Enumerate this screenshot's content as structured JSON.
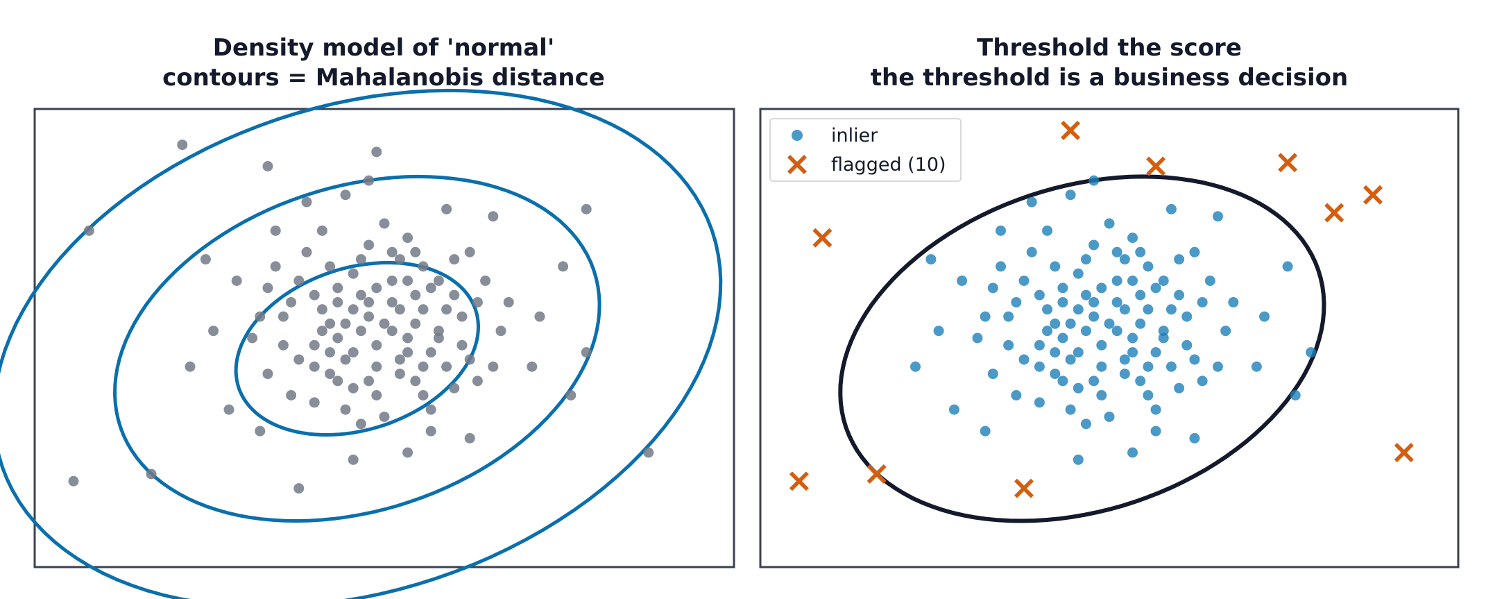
{
  "colors": {
    "axes": "#3b4150",
    "title": "#141a2b",
    "normal_points": "#737a87",
    "contours": "#0a6fad",
    "inlier": "#1e7fb8",
    "flagged": "#d45e0f",
    "threshold": "#141a2b"
  },
  "chart_data": [
    {
      "type": "scatter",
      "title": "Density model of 'normal'",
      "subtitle": "contours = Mahalanobis distance",
      "xlabel": "",
      "ylabel": "",
      "xlim": [
        -4.5,
        4.5
      ],
      "ylim": [
        -3.4,
        3.0
      ],
      "grid": false,
      "center": [
        -0.35,
        -0.35
      ],
      "contour_levels": [
        1,
        2,
        3
      ],
      "contour_semi_axes_at_1": [
        1.62,
        1.12
      ],
      "contour_rotation_deg": 22,
      "series": [
        {
          "points": [
            [
              -0.6,
              -0.2
            ],
            [
              -0.2,
              0.1
            ],
            [
              0.3,
              -0.4
            ],
            [
              -0.9,
              -0.6
            ],
            [
              0.1,
              0.6
            ],
            [
              -0.4,
              -0.9
            ],
            [
              0.8,
              0.2
            ],
            [
              -1.2,
              0.3
            ],
            [
              0.5,
              -1.0
            ],
            [
              -0.1,
              -0.3
            ],
            [
              0.2,
              0.9
            ],
            [
              -0.7,
              0.8
            ],
            [
              1.1,
              -0.5
            ],
            [
              -1.5,
              -0.7
            ],
            [
              0.0,
              -1.3
            ],
            [
              0.6,
              0.5
            ],
            [
              -0.3,
              0.4
            ],
            [
              -0.8,
              -0.1
            ],
            [
              0.4,
              0.0
            ],
            [
              -0.5,
              -0.5
            ],
            [
              1.3,
              0.6
            ],
            [
              -1.0,
              1.0
            ],
            [
              0.9,
              -0.9
            ],
            [
              -1.6,
              0.1
            ],
            [
              0.2,
              -0.7
            ],
            [
              -0.2,
              1.1
            ],
            [
              0.7,
              -0.2
            ],
            [
              -0.9,
              -1.1
            ],
            [
              1.5,
              -0.1
            ],
            [
              -0.4,
              0.7
            ],
            [
              0.1,
              0.3
            ],
            [
              -0.7,
              -0.4
            ],
            [
              0.5,
              0.8
            ],
            [
              -1.3,
              -0.3
            ],
            [
              1.0,
              0.1
            ],
            [
              -0.1,
              -0.6
            ],
            [
              0.3,
              1.2
            ],
            [
              -0.6,
              0.5
            ],
            [
              0.8,
              -0.6
            ],
            [
              -1.1,
              0.6
            ],
            [
              0.0,
              0.0
            ],
            [
              -0.3,
              -0.1
            ],
            [
              0.4,
              0.4
            ],
            [
              -0.8,
              0.2
            ],
            [
              0.6,
              -0.4
            ],
            [
              -0.5,
              -1.2
            ],
            [
              1.2,
              -0.8
            ],
            [
              -1.4,
              0.8
            ],
            [
              0.9,
              0.9
            ],
            [
              -0.2,
              -0.8
            ],
            [
              0.1,
              -0.1
            ],
            [
              -0.4,
              0.2
            ],
            [
              0.3,
              -0.2
            ],
            [
              -0.7,
              0.0
            ],
            [
              0.5,
              0.2
            ],
            [
              -0.1,
              0.5
            ],
            [
              0.2,
              -0.5
            ],
            [
              -0.9,
              0.4
            ],
            [
              0.7,
              0.6
            ],
            [
              -0.6,
              -0.8
            ],
            [
              1.6,
              0.3
            ],
            [
              -1.7,
              -0.2
            ],
            [
              0.4,
              1.0
            ],
            [
              -0.3,
              -1.4
            ],
            [
              1.1,
              1.0
            ],
            [
              -1.2,
              -1.0
            ],
            [
              0.0,
              1.4
            ],
            [
              -0.8,
              1.3
            ],
            [
              1.4,
              -0.6
            ],
            [
              -1.5,
              0.5
            ],
            [
              0.6,
              -1.2
            ],
            [
              -0.2,
              0.3
            ],
            [
              0.2,
              0.2
            ],
            [
              -0.5,
              0.0
            ],
            [
              0.3,
              0.6
            ],
            [
              -0.4,
              -0.4
            ],
            [
              0.7,
              -0.1
            ],
            [
              -0.9,
              -0.3
            ],
            [
              1.0,
              -0.3
            ],
            [
              -0.6,
              0.3
            ],
            [
              0.9,
              0.4
            ],
            [
              -1.1,
              -0.5
            ],
            [
              0.4,
              -0.8
            ],
            [
              -0.3,
              0.9
            ],
            [
              0.5,
              -0.6
            ],
            [
              -0.7,
              -0.7
            ],
            [
              1.2,
              0.3
            ],
            [
              -1.3,
              0.1
            ],
            [
              0.1,
              1.0
            ],
            [
              -0.1,
              -1.0
            ],
            [
              2.3,
              0.8
            ],
            [
              -2.2,
              -0.1
            ],
            [
              0.8,
              1.6
            ],
            [
              -1.6,
              -1.5
            ],
            [
              1.9,
              -0.6
            ],
            [
              -0.5,
              1.8
            ],
            [
              2.6,
              -0.4
            ],
            [
              -2.3,
              0.9
            ],
            [
              0.3,
              -1.8
            ],
            [
              -1.0,
              1.7
            ],
            [
              1.4,
              1.5
            ],
            [
              -2.0,
              -1.2
            ],
            [
              2.0,
              0.1
            ],
            [
              -1.9,
              0.6
            ],
            [
              0.6,
              -1.5
            ],
            [
              -0.2,
              2.0
            ],
            [
              2.4,
              -1.0
            ],
            [
              -2.5,
              -0.6
            ],
            [
              1.1,
              -1.6
            ],
            [
              -1.4,
              1.3
            ],
            [
              -2.6,
              2.5
            ],
            [
              -1.5,
              2.2
            ],
            [
              -0.1,
              2.4
            ],
            [
              2.6,
              1.6
            ],
            [
              -3.8,
              1.3
            ],
            [
              -4.0,
              -2.2
            ],
            [
              -3.0,
              -2.1
            ],
            [
              -1.1,
              -2.3
            ],
            [
              3.4,
              -1.8
            ],
            [
              -0.4,
              -1.9
            ]
          ]
        }
      ]
    },
    {
      "type": "scatter",
      "title": "Threshold the score",
      "subtitle": "the threshold is a business decision",
      "xlabel": "",
      "ylabel": "",
      "xlim": [
        -4.5,
        4.5
      ],
      "ylim": [
        -3.4,
        3.0
      ],
      "grid": false,
      "legend": "top-left",
      "threshold_level": 2,
      "series": [
        {
          "name": "inlier",
          "points": [
            [
              -0.6,
              -0.2
            ],
            [
              -0.2,
              0.1
            ],
            [
              0.3,
              -0.4
            ],
            [
              -0.9,
              -0.6
            ],
            [
              0.1,
              0.6
            ],
            [
              -0.4,
              -0.9
            ],
            [
              0.8,
              0.2
            ],
            [
              -1.2,
              0.3
            ],
            [
              0.5,
              -1.0
            ],
            [
              -0.1,
              -0.3
            ],
            [
              0.2,
              0.9
            ],
            [
              -0.7,
              0.8
            ],
            [
              1.1,
              -0.5
            ],
            [
              -1.5,
              -0.7
            ],
            [
              0.0,
              -1.3
            ],
            [
              0.6,
              0.5
            ],
            [
              -0.3,
              0.4
            ],
            [
              -0.8,
              -0.1
            ],
            [
              0.4,
              0.0
            ],
            [
              -0.5,
              -0.5
            ],
            [
              1.3,
              0.6
            ],
            [
              -1.0,
              1.0
            ],
            [
              0.9,
              -0.9
            ],
            [
              -1.6,
              0.1
            ],
            [
              0.2,
              -0.7
            ],
            [
              -0.2,
              1.1
            ],
            [
              0.7,
              -0.2
            ],
            [
              -0.9,
              -1.1
            ],
            [
              1.5,
              -0.1
            ],
            [
              -0.4,
              0.7
            ],
            [
              0.1,
              0.3
            ],
            [
              -0.7,
              -0.4
            ],
            [
              0.5,
              0.8
            ],
            [
              -1.3,
              -0.3
            ],
            [
              1.0,
              0.1
            ],
            [
              -0.1,
              -0.6
            ],
            [
              0.3,
              1.2
            ],
            [
              -0.6,
              0.5
            ],
            [
              0.8,
              -0.6
            ],
            [
              -1.1,
              0.6
            ],
            [
              0.0,
              0.0
            ],
            [
              -0.3,
              -0.1
            ],
            [
              0.4,
              0.4
            ],
            [
              -0.8,
              0.2
            ],
            [
              0.6,
              -0.4
            ],
            [
              -0.5,
              -1.2
            ],
            [
              1.2,
              -0.8
            ],
            [
              -1.4,
              0.8
            ],
            [
              0.9,
              0.9
            ],
            [
              -0.2,
              -0.8
            ],
            [
              0.1,
              -0.1
            ],
            [
              -0.4,
              0.2
            ],
            [
              0.3,
              -0.2
            ],
            [
              -0.7,
              0.0
            ],
            [
              0.5,
              0.2
            ],
            [
              -0.1,
              0.5
            ],
            [
              0.2,
              -0.5
            ],
            [
              -0.9,
              0.4
            ],
            [
              0.7,
              0.6
            ],
            [
              -0.6,
              -0.8
            ],
            [
              1.6,
              0.3
            ],
            [
              -1.7,
              -0.2
            ],
            [
              0.4,
              1.0
            ],
            [
              -0.3,
              -1.4
            ],
            [
              1.1,
              1.0
            ],
            [
              -1.2,
              -1.0
            ],
            [
              0.0,
              1.4
            ],
            [
              -0.8,
              1.3
            ],
            [
              1.4,
              -0.6
            ],
            [
              -1.5,
              0.5
            ],
            [
              0.6,
              -1.2
            ],
            [
              -0.2,
              0.3
            ],
            [
              0.2,
              0.2
            ],
            [
              -0.5,
              0.0
            ],
            [
              0.3,
              0.6
            ],
            [
              -0.4,
              -0.4
            ],
            [
              0.7,
              -0.1
            ],
            [
              -0.9,
              -0.3
            ],
            [
              1.0,
              -0.3
            ],
            [
              -0.6,
              0.3
            ],
            [
              0.9,
              0.4
            ],
            [
              -1.1,
              -0.5
            ],
            [
              0.4,
              -0.8
            ],
            [
              -0.3,
              0.9
            ],
            [
              0.5,
              -0.6
            ],
            [
              -0.7,
              -0.7
            ],
            [
              1.2,
              0.3
            ],
            [
              -1.3,
              0.1
            ],
            [
              0.1,
              1.0
            ],
            [
              -0.1,
              -1.0
            ],
            [
              2.3,
              0.8
            ],
            [
              -2.2,
              -0.1
            ],
            [
              0.8,
              1.6
            ],
            [
              -1.6,
              -1.5
            ],
            [
              1.9,
              -0.6
            ],
            [
              -0.5,
              1.8
            ],
            [
              2.6,
              -0.4
            ],
            [
              -2.3,
              0.9
            ],
            [
              0.3,
              -1.8
            ],
            [
              -1.0,
              1.7
            ],
            [
              1.4,
              1.5
            ],
            [
              -2.0,
              -1.2
            ],
            [
              2.0,
              0.1
            ],
            [
              -1.9,
              0.6
            ],
            [
              0.6,
              -1.5
            ],
            [
              -0.2,
              2.0
            ],
            [
              2.4,
              -1.0
            ],
            [
              -2.5,
              -0.6
            ],
            [
              1.1,
              -1.6
            ],
            [
              -1.4,
              1.3
            ],
            [
              -0.4,
              -1.9
            ]
          ]
        },
        {
          "name": "flagged (10)",
          "points": [
            [
              -0.5,
              2.7
            ],
            [
              0.6,
              2.2
            ],
            [
              2.3,
              2.25
            ],
            [
              3.4,
              1.8
            ],
            [
              2.9,
              1.55
            ],
            [
              -3.7,
              1.2
            ],
            [
              -4.0,
              -2.2
            ],
            [
              -3.0,
              -2.1
            ],
            [
              -1.1,
              -2.3
            ],
            [
              3.8,
              -1.8
            ]
          ]
        }
      ]
    }
  ]
}
